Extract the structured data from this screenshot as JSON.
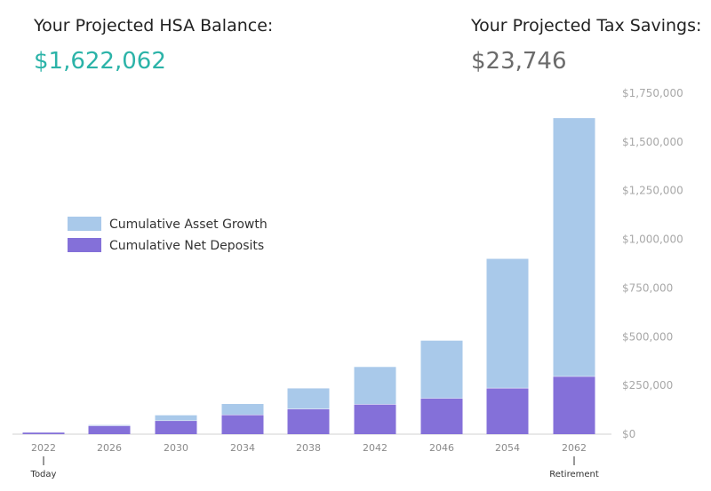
{
  "header": {
    "hsa_label": "Your Projected HSA Balance:",
    "hsa_value": "$1,622,062",
    "tax_label": "Your Projected Tax Savings:",
    "tax_value": "$23,746"
  },
  "colors": {
    "hsa_value": "#2bb3a8",
    "tax_value": "#6b6b6b",
    "growth": "#a9c9ea",
    "deposits": "#8470d9"
  },
  "chart_data": {
    "type": "bar",
    "stacked": true,
    "categories": [
      "2022",
      "2026",
      "2030",
      "2034",
      "2038",
      "2042",
      "2046",
      "2054",
      "2062"
    ],
    "category_sublabels": {
      "2022": "Today",
      "2062": "Retirement"
    },
    "series": [
      {
        "name": "Cumulative Net Deposits",
        "color": "#8470d9",
        "values": [
          8000,
          42000,
          68000,
          98000,
          128000,
          152000,
          183000,
          235000,
          295000
        ]
      },
      {
        "name": "Cumulative Asset Growth",
        "color": "#a9c9ea",
        "values": [
          2000,
          5000,
          29000,
          57000,
          107000,
          193000,
          297000,
          665000,
          1327062
        ]
      }
    ],
    "legend_order": [
      "Cumulative Asset Growth",
      "Cumulative Net Deposits"
    ],
    "ylim": [
      0,
      1750000
    ],
    "yticks": [
      "$0",
      "$250,000",
      "$500,000",
      "$750,000",
      "$1,000,000",
      "$1,250,000",
      "$1,500,000",
      "$1,750,000"
    ],
    "ytick_values": [
      0,
      250000,
      500000,
      750000,
      1000000,
      1250000,
      1500000,
      1750000
    ],
    "y_axis_position": "right",
    "legend_position": "left-middle",
    "grid": false
  }
}
